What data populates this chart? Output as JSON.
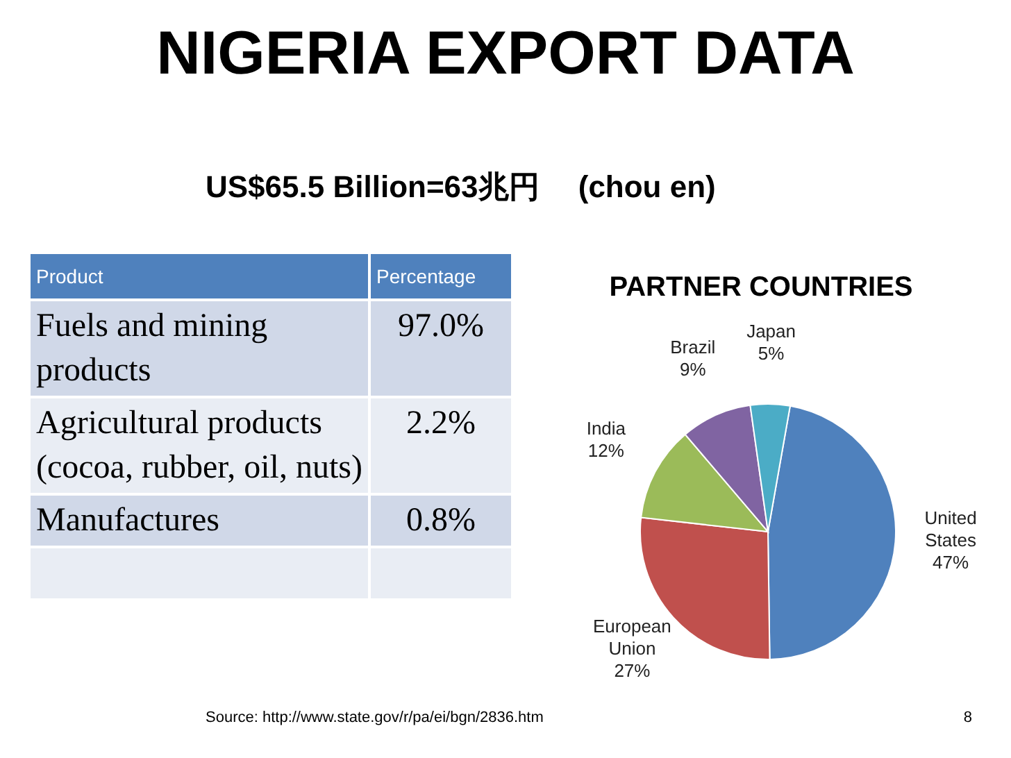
{
  "chart_data": [
    {
      "type": "other",
      "title": "NIGERIA EXPORT DATA",
      "subtitle": "US$65.5 Billion=63兆円　 (chou en)",
      "xlabel": "Product",
      "ylabel": "Percentage",
      "categories": [
        "Fuels and mining products",
        "Agricultural products (cocoa, rubber, oil, nuts)",
        "Manufactures"
      ],
      "value_labels": [
        "97.0%",
        "2.2%",
        "0.8%"
      ],
      "annotations": [
        "Source:  http://www.state.gov/r/pa/ei/bgn/2836.htm",
        "8"
      ]
    },
    {
      "type": "pie",
      "title": "PARTNER COUNTRIES",
      "categories": [
        "United States",
        "European Union",
        "India",
        "Brazil",
        "Japan"
      ],
      "values": [
        47,
        27,
        12,
        9,
        5
      ],
      "value_labels": [
        "47%",
        "27%",
        "12%",
        "9%",
        "5%"
      ],
      "colors": [
        "#4f81bd",
        "#c0504d",
        "#9bbb59",
        "#8064a2",
        "#4bacc6"
      ]
    }
  ]
}
